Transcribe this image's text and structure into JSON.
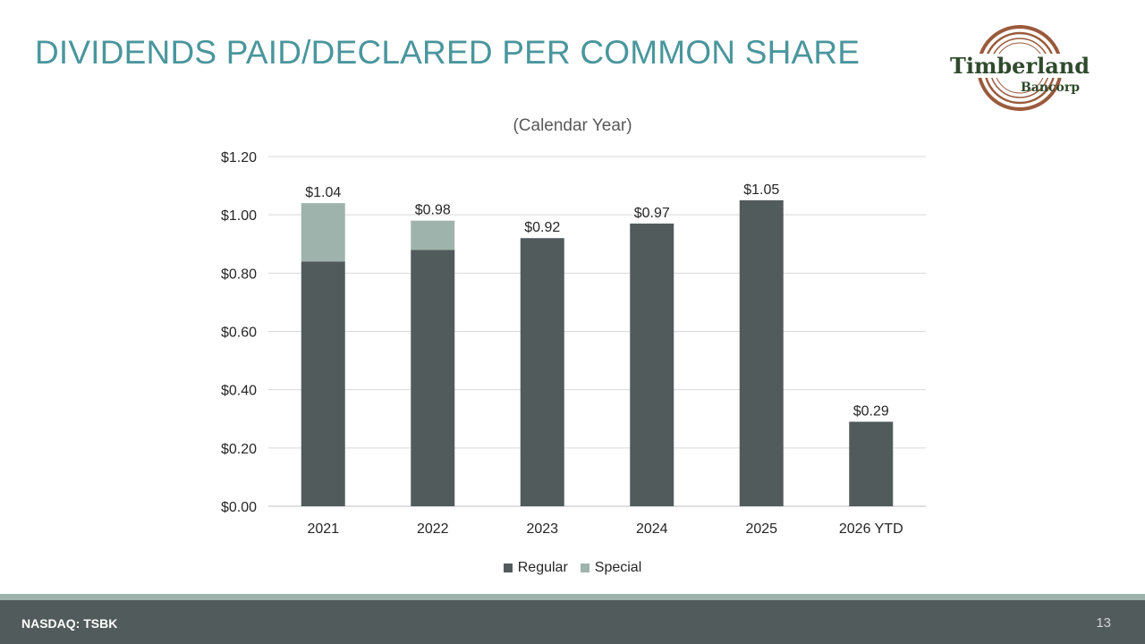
{
  "slide": {
    "title": "DIVIDENDS PAID/DECLARED PER COMMON SHARE",
    "title_color": "#4a969d",
    "logo": {
      "name": "Timberland",
      "sub": "Bancorp",
      "name_color": "#2f4a2c",
      "ring_color": "#9a5a3c"
    },
    "footer": {
      "left_text": "NASDAQ: TSBK",
      "page_number": "13",
      "bar_color": "#525b5c",
      "stripe_color": "#9eb3ab"
    }
  },
  "chart_data": {
    "type": "bar",
    "stacked": true,
    "title": "(Calendar Year)",
    "xlabel": "",
    "ylabel": "",
    "categories": [
      "2021",
      "2022",
      "2023",
      "2024",
      "2025",
      "2026 YTD"
    ],
    "series": [
      {
        "name": "Regular",
        "color": "#525b5c",
        "values": [
          0.84,
          0.88,
          0.92,
          0.97,
          1.05,
          0.29
        ]
      },
      {
        "name": "Special",
        "color": "#9eb3ab",
        "values": [
          0.2,
          0.1,
          0,
          0,
          0,
          0
        ]
      }
    ],
    "total_labels": [
      "$1.04",
      "$0.98",
      "$0.92",
      "$0.97",
      "$1.05",
      "$0.29"
    ],
    "ylim": [
      0,
      1.2
    ],
    "yticks": [
      0,
      0.2,
      0.4,
      0.6,
      0.8,
      1.0,
      1.2
    ],
    "ytick_labels": [
      "$0.00",
      "$0.20",
      "$0.40",
      "$0.60",
      "$0.80",
      "$1.00",
      "$1.20"
    ],
    "grid": true,
    "legend_position": "bottom"
  }
}
